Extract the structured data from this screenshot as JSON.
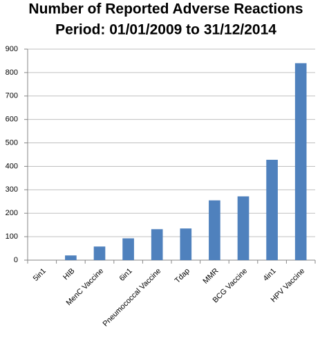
{
  "chart_data": {
    "type": "bar",
    "title": "Number of Reported Adverse Reactions",
    "subtitle": "Period: 01/01/2009 to 31/12/2014",
    "categories": [
      "5in1",
      "HIB",
      "MenC Vaccine",
      "6in1",
      "Pneumococcal Vaccine",
      "Tdap",
      "MMR",
      "BCG Vaccine",
      "4in1",
      "HPV Vaccine"
    ],
    "values": [
      0,
      20,
      58,
      93,
      132,
      135,
      255,
      272,
      428,
      840
    ],
    "color": "#4f81bd",
    "ylim": [
      0,
      900
    ],
    "yticks": [
      0,
      100,
      200,
      300,
      400,
      500,
      600,
      700,
      800,
      900
    ],
    "grid": true
  }
}
